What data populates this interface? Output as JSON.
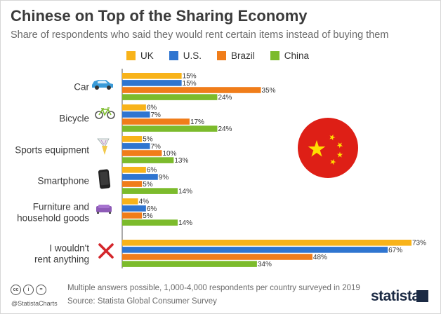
{
  "title": "Chinese on Top of the Sharing Economy",
  "subtitle": "Share of respondents who said they would rent certain items instead of buying them",
  "footer": {
    "note": "Multiple answers possible, 1,000-4,000 respondents per country surveyed in 2019",
    "source": "Source: Statista Global Consumer Survey",
    "handle": "@StatistaCharts",
    "brand": "statista"
  },
  "icons": [
    "car-icon",
    "bicycle-icon",
    "sports-equipment-icon",
    "smartphone-icon",
    "sofa-icon",
    "cross-icon"
  ],
  "colors": {
    "UK": "#f8b31a",
    "U.S.": "#2f75d0",
    "Brazil": "#f07d1a",
    "China": "#7cbb2c",
    "flag_red": "#de1f16",
    "flag_star": "#ffde00"
  },
  "chart_data": {
    "type": "bar",
    "orientation": "horizontal",
    "categories": [
      "Car",
      "Bicycle",
      "Sports equipment",
      "Smartphone",
      "Furniture and household goods",
      "I wouldn't rent anything"
    ],
    "category_lines": [
      [
        "Car"
      ],
      [
        "Bicycle"
      ],
      [
        "Sports equipment"
      ],
      [
        "Smartphone"
      ],
      [
        "Furniture and",
        "household goods"
      ],
      [
        "I wouldn't",
        "rent anything"
      ]
    ],
    "series": [
      {
        "name": "UK",
        "values": [
          15,
          6,
          5,
          6,
          4,
          73
        ]
      },
      {
        "name": "U.S.",
        "values": [
          15,
          7,
          7,
          9,
          6,
          67
        ]
      },
      {
        "name": "Brazil",
        "values": [
          35,
          17,
          10,
          5,
          5,
          48
        ]
      },
      {
        "name": "China",
        "values": [
          24,
          24,
          13,
          14,
          14,
          34
        ]
      }
    ],
    "value_suffix": "%",
    "xlim": [
      0,
      73
    ],
    "legend_position": "top",
    "grid": false
  }
}
